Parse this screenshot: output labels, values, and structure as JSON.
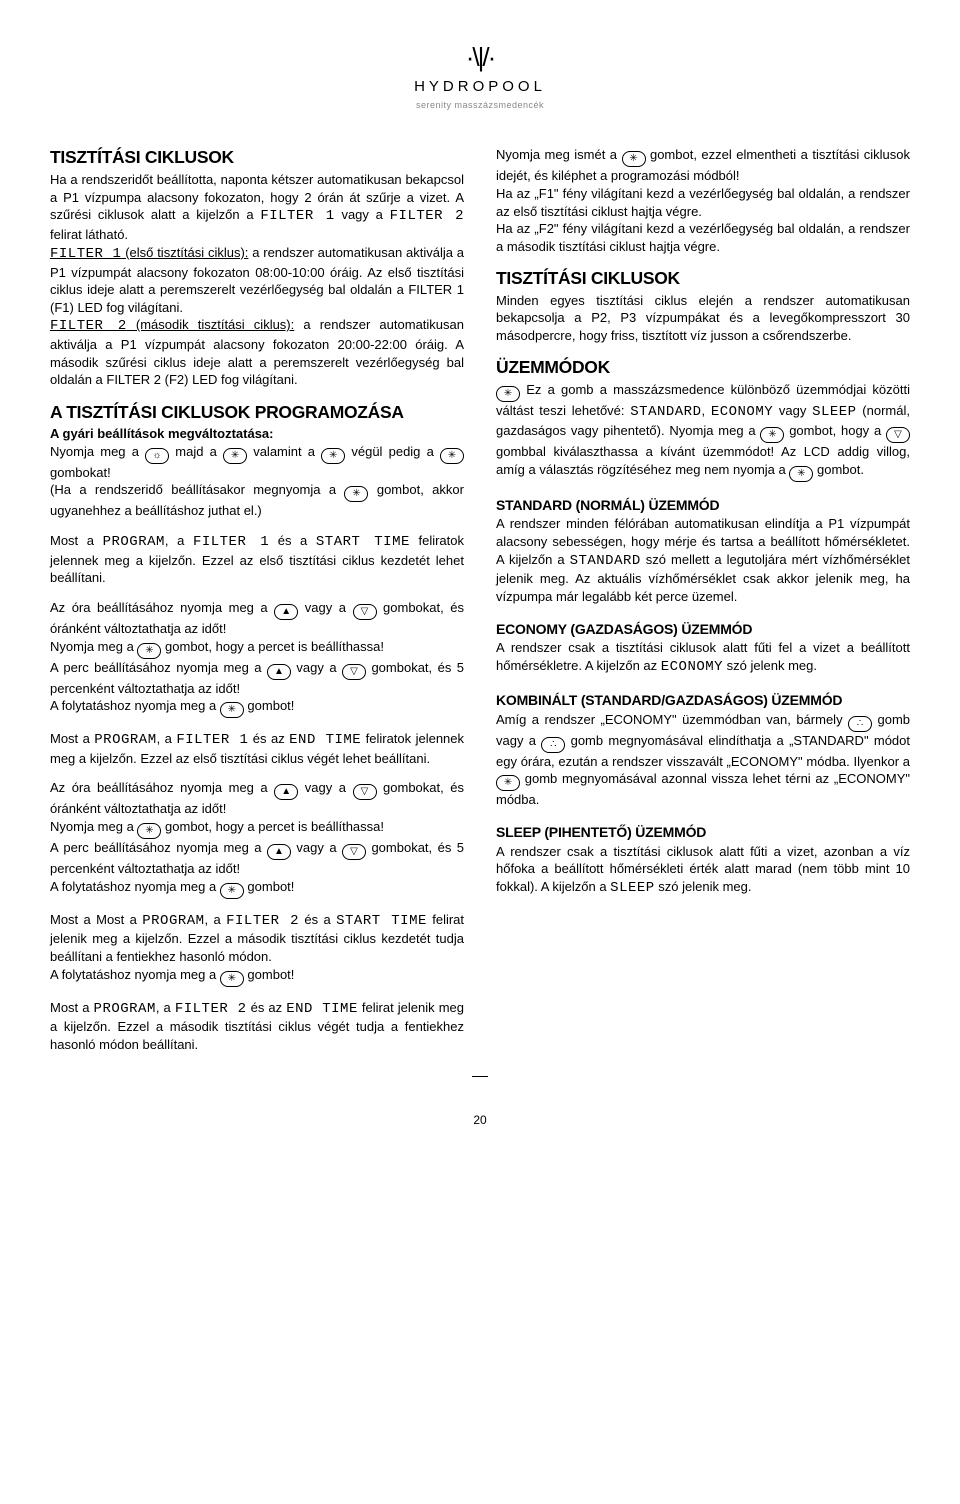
{
  "logo": {
    "mark": "·\\|/·",
    "brand": "HYDROPOOL",
    "subtitle": "serenity masszázsmedencék"
  },
  "col1": {
    "h1": "TISZTÍTÁSI CIKLUSOK",
    "p1a": "Ha a rendszeridőt beállította, naponta kétszer automatikusan bekapcsol a P1 vízpumpa alacsony fokozaton, hogy 2 órán át szűrje a vizet. A szűrési ciklusok alatt a kijelzőn a ",
    "lcd_f1a": "FILTER 1",
    "p1b": " vagy a ",
    "lcd_f2a": "FILTER 2",
    "p1c": " felirat látható.",
    "lcd_f1u": "FILTER 1",
    "p1d": " (első tisztítási ciklus):",
    "p1e": " a rendszer automatikusan aktiválja a P1 vízpumpát alacsony fokozaton 08:00-10:00 óráig. Az első tisztítási ciklus ideje alatt a peremszerelt vezérlőegység bal oldalán a FILTER 1 (F1) LED fog világítani.",
    "lcd_f2u": "FILTER 2",
    "p1f": " (második tisztítási ciklus):",
    "p1g": " a rendszer automatikusan aktiválja a P1 vízpumpát alacsony fokozaton 20:00-22:00 óráig. A második szűrési ciklus ideje alatt a peremszerelt vezérlőegység bal oldalán a FILTER 2 (F2) LED fog világítani.",
    "h2": "A TISZTÍTÁSI CIKLUSOK PROGRAMOZÁSA",
    "sub1": "A gyári beállítások megváltoztatása:",
    "p2a": "Nyomja meg a ",
    "p2b": " majd a ",
    "p2c": " valamint a ",
    "p2d": " végül pedig a ",
    "p2e": " gombokat!",
    "p2f": "(Ha a rendszeridő beállításakor megnyomja a ",
    "p2g": " gombot, akkor ugyanehhez a beállításhoz juthat el.)",
    "p3a": "Most a ",
    "lcd_prog": "PROGRAM",
    "p3b": ", a ",
    "lcd_f1b": "FILTER 1",
    "p3c": " és a ",
    "lcd_start": "START TIME",
    "p3d": " feliratok jelennek meg a kijelzőn. Ezzel az első tisztítási ciklus kezdetét lehet beállítani.",
    "p4a": "Az óra beállításához nyomja meg a ",
    "p4b": " vagy a ",
    "p4c": " gombokat, és óránként változtathatja az időt!",
    "p4d": "Nyomja meg a ",
    "p4e": " gombot, hogy a percet is beállíthassa!",
    "p4f": "A perc beállításához nyomja meg a ",
    "p4g": " vagy a ",
    "p4h": " gombokat, és 5 percenként változtathatja az időt!",
    "p4i": "A folytatáshoz nyomja meg a ",
    "p4j": " gombot!",
    "p5a": "Most a ",
    "p5b": ", a ",
    "lcd_f1c": "FILTER 1",
    "p5c": " és az ",
    "lcd_end": "END TIME",
    "p5d": " feliratok jelennek meg a kijelzőn. Ezzel az első tisztítási ciklus végét lehet beállítani.",
    "p6a": "Most a Most a ",
    "lcd_f2b": "FILTER 2",
    "p6b": " és a ",
    "p6c": " felirat jelenik meg a kijelzőn. Ezzel a második tisztítási ciklus kezdetét tudja beállítani a fentiekhez hasonló módon.",
    "p6d": "A folytatáshoz nyomja meg a ",
    "p6e": " gombot!",
    "p7a": "Most a ",
    "lcd_f2c": "FILTER 2",
    "p7b": " és az ",
    "p7c": " felirat jelenik meg a kijelzőn. Ezzel a második tisztítási ciklus végét tudja a fentiekhez hasonló módon beállítani."
  },
  "col2": {
    "p0a": "Nyomja meg ismét a ",
    "p0b": " gombot, ezzel elmentheti a tisztítási ciklusok idejét, és kiléphet a programozási módból!",
    "p0c": "Ha az „F1\" fény világítani kezd a vezérlőegység bal oldalán, a rendszer az első tisztítási ciklust hajtja végre.",
    "p0d": "Ha az „F2\" fény világítani kezd a vezérlőegység bal oldalán, a rendszer a második tisztítási ciklust hajtja végre.",
    "h1": "TISZTÍTÁSI CIKLUSOK",
    "p1": "Minden egyes tisztítási ciklus elején a rendszer automatikusan bekapcsolja a P2, P3 vízpumpákat és a levegőkompresszort 30 másodpercre, hogy friss, tisztított víz jusson a csőrendszerbe.",
    "h2": "ÜZEMMÓDOK",
    "p2a": " Ez a gomb a masszázsmedence különböző üzemmódjai közötti váltást teszi lehetővé: ",
    "lcd_std": "STANDARD",
    "p2b": ", ",
    "lcd_eco": "ECONOMY",
    "p2c": " vagy ",
    "lcd_slp": "SLEEP",
    "p2d": " (normál, gazdaságos vagy pihentető). Nyomja meg a ",
    "p2e": " gombot, hogy a ",
    "p2f": " gombbal kiválaszthassa a kívánt üzemmódot! Az LCD addig villog, amíg a választás rögzítéséhez meg nem nyomja a ",
    "p2g": " gombot.",
    "h3a": "STANDARD (NORMÁL) ÜZEMMÓD",
    "p3a": "A rendszer minden félórában automatikusan elindítja a P1 vízpumpát alacsony sebességen, hogy mérje és tartsa a beállított hőmérsékletet. A kijelzőn a ",
    "p3b": " szó mellett a legutoljára mért vízhőmérséklet jelenik meg. Az aktuális vízhőmérséklet csak akkor jelenik meg, ha vízpumpa már legalább két perce üzemel.",
    "h3b": "ECONOMY (GAZDASÁGOS) ÜZEMMÓD",
    "p4a": "A rendszer csak a tisztítási ciklusok alatt fűti fel a vizet a beállított hőmérsékletre. A kijelzőn az ",
    "p4b": " szó jelenk meg.",
    "h3c": "KOMBINÁLT (STANDARD/GAZDASÁGOS) ÜZEMMÓD",
    "p5a": "Amíg a rendszer „ECONOMY\" üzemmódban van, bármely ",
    "p5b": " gomb vagy a ",
    "p5c": " gomb megnyomásával elindíthatja a „STANDARD\" módot egy órára, ezután a rendszer visszavált „ECONOMY\" módba. Ilyenkor a ",
    "p5d": " gomb megnyomásával azonnal vissza lehet térni az „ECONOMY\" módba.",
    "h3d": "SLEEP (PIHENTETŐ) ÜZEMMÓD",
    "p6a": "A rendszer csak a tisztítási ciklusok alatt fűti a vizet, azonban a víz hőfoka a beállított hőmérsékleti érték alatt marad (nem több mint 10 fokkal). A kijelzőn a ",
    "p6b": " szó jelenik meg."
  },
  "btns": {
    "light": "☼",
    "star": "✳",
    "up": "▲",
    "down": "▽",
    "dots": "∴"
  },
  "page": "20"
}
